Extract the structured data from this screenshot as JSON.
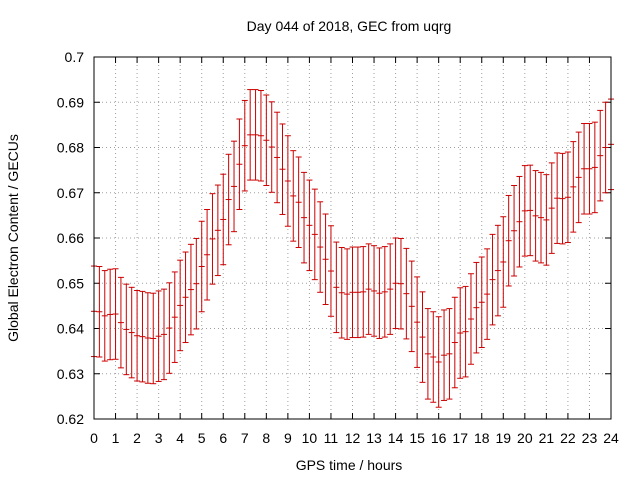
{
  "chart_data": {
    "type": "scatter",
    "title": "Day 044 of 2018, GEC from uqrg",
    "xlabel": "GPS time / hours",
    "ylabel": "Global Electron Content / GECUs",
    "xlim": [
      0,
      24
    ],
    "ylim": [
      0.62,
      0.7
    ],
    "grid": true,
    "error_bars": true,
    "series_color": "#cc0000",
    "x_ticks": [
      "0",
      "1",
      "2",
      "3",
      "4",
      "5",
      "6",
      "7",
      "8",
      "9",
      "10",
      "11",
      "12",
      "13",
      "14",
      "15",
      "16",
      "17",
      "18",
      "19",
      "20",
      "21",
      "22",
      "23",
      "24"
    ],
    "y_ticks": [
      "0.62",
      "0.63",
      "0.64",
      "0.65",
      "0.66",
      "0.67",
      "0.68",
      "0.69",
      "0.7"
    ],
    "series": [
      {
        "x": [
          0.0,
          0.25,
          0.5,
          0.75,
          1.0,
          1.25,
          1.5,
          1.75,
          2.0,
          2.25,
          2.5,
          2.75,
          3.0,
          3.25,
          3.5,
          3.75,
          4.0,
          4.25,
          4.5,
          4.75,
          5.0,
          5.25,
          5.5,
          5.75,
          6.0,
          6.25,
          6.5,
          6.75,
          7.0,
          7.25,
          7.5,
          7.75,
          8.0,
          8.25,
          8.5,
          8.75,
          9.0,
          9.25,
          9.5,
          9.75,
          10.0,
          10.25,
          10.5,
          10.75,
          11.0,
          11.25,
          11.5,
          11.75,
          12.0,
          12.25,
          12.5,
          12.75,
          13.0,
          13.25,
          13.5,
          13.75,
          14.0,
          14.25,
          14.5,
          14.75,
          15.0,
          15.25,
          15.5,
          15.75,
          16.0,
          16.25,
          16.5,
          16.75,
          17.0,
          17.25,
          17.5,
          17.75,
          18.0,
          18.25,
          18.5,
          18.75,
          19.0,
          19.25,
          19.5,
          19.75,
          20.0,
          20.25,
          20.5,
          20.75,
          21.0,
          21.25,
          21.5,
          21.75,
          22.0,
          22.25,
          22.5,
          22.75,
          23.0,
          23.25,
          23.5,
          23.75,
          24.0
        ],
        "y": [
          0.6438,
          0.6437,
          0.6428,
          0.6431,
          0.6432,
          0.6413,
          0.6398,
          0.6391,
          0.6384,
          0.6382,
          0.6379,
          0.6378,
          0.6383,
          0.6387,
          0.6401,
          0.6425,
          0.6451,
          0.6469,
          0.6486,
          0.6499,
          0.6537,
          0.6563,
          0.6598,
          0.6617,
          0.6641,
          0.6685,
          0.6714,
          0.6763,
          0.6804,
          0.6828,
          0.6828,
          0.6826,
          0.6816,
          0.6801,
          0.6778,
          0.6752,
          0.6726,
          0.6693,
          0.6679,
          0.6645,
          0.6628,
          0.6608,
          0.658,
          0.6553,
          0.6527,
          0.6491,
          0.6479,
          0.6476,
          0.648,
          0.648,
          0.6481,
          0.6487,
          0.6483,
          0.6478,
          0.6481,
          0.6487,
          0.65,
          0.6499,
          0.6477,
          0.6449,
          0.6414,
          0.6381,
          0.6344,
          0.6337,
          0.6326,
          0.6341,
          0.6344,
          0.6369,
          0.639,
          0.6393,
          0.6421,
          0.6446,
          0.6458,
          0.6476,
          0.6508,
          0.6528,
          0.6547,
          0.6594,
          0.6616,
          0.6636,
          0.666,
          0.6661,
          0.6649,
          0.6645,
          0.664,
          0.6666,
          0.6688,
          0.6687,
          0.669,
          0.6713,
          0.6734,
          0.6753,
          0.6753,
          0.6756,
          0.6782,
          0.68,
          0.6807
        ],
        "err": [
          0.01,
          0.01,
          0.01,
          0.01,
          0.01,
          0.01,
          0.01,
          0.01,
          0.01,
          0.01,
          0.01,
          0.01,
          0.01,
          0.01,
          0.01,
          0.01,
          0.01,
          0.01,
          0.01,
          0.01,
          0.01,
          0.01,
          0.01,
          0.01,
          0.01,
          0.01,
          0.01,
          0.01,
          0.01,
          0.01,
          0.01,
          0.01,
          0.01,
          0.01,
          0.01,
          0.01,
          0.01,
          0.01,
          0.01,
          0.01,
          0.01,
          0.01,
          0.01,
          0.01,
          0.01,
          0.01,
          0.01,
          0.01,
          0.01,
          0.01,
          0.01,
          0.01,
          0.01,
          0.01,
          0.01,
          0.01,
          0.01,
          0.01,
          0.01,
          0.01,
          0.01,
          0.01,
          0.01,
          0.01,
          0.01,
          0.01,
          0.01,
          0.01,
          0.01,
          0.01,
          0.01,
          0.01,
          0.01,
          0.01,
          0.01,
          0.01,
          0.01,
          0.01,
          0.01,
          0.01,
          0.01,
          0.01,
          0.01,
          0.01,
          0.01,
          0.01,
          0.01,
          0.01,
          0.01,
          0.01,
          0.01,
          0.01,
          0.01,
          0.01,
          0.01,
          0.01,
          0.01
        ]
      }
    ]
  }
}
